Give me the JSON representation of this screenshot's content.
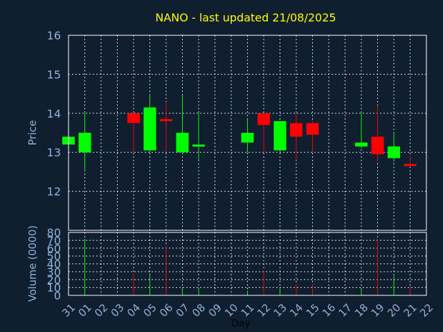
{
  "chart_data": {
    "type": "candlestick",
    "title": "NANO - last updated 21/08/2025",
    "xlabel": "Day",
    "price_panel": {
      "ylabel": "Price",
      "ylim": [
        11,
        16
      ],
      "yticks": [
        12,
        13,
        14,
        15,
        16
      ]
    },
    "volume_panel": {
      "ylabel": "Volume (0000)",
      "ylim": [
        0,
        80
      ],
      "yticks": [
        0,
        10,
        20,
        30,
        40,
        50,
        60,
        70,
        80
      ]
    },
    "x_tick_labels": [
      "31",
      "01",
      "02",
      "03",
      "04",
      "05",
      "06",
      "07",
      "08",
      "09",
      "10",
      "11",
      "12",
      "13",
      "14",
      "15",
      "16",
      "17",
      "18",
      "19",
      "20",
      "21",
      "22"
    ],
    "colors": {
      "up": "#00ff00",
      "down": "#ff0000",
      "background": "#0f1f30",
      "title": "#ffff00",
      "axis_text": "#8fb2d9"
    },
    "candles": [
      {
        "x": "31",
        "open": 13.2,
        "high": 13.4,
        "low": 13.2,
        "close": 13.4,
        "volume": 0
      },
      {
        "x": "01",
        "open": 13.0,
        "high": 14.0,
        "low": 12.5,
        "close": 13.5,
        "volume": 72
      },
      {
        "x": "04",
        "open": 14.0,
        "high": 14.0,
        "low": 13.0,
        "close": 13.75,
        "volume": 28
      },
      {
        "x": "05",
        "open": 13.05,
        "high": 14.5,
        "low": 13.0,
        "close": 14.15,
        "volume": 25
      },
      {
        "x": "06",
        "open": 13.85,
        "high": 14.3,
        "low": 13.0,
        "close": 13.8,
        "volume": 63
      },
      {
        "x": "07",
        "open": 13.0,
        "high": 14.45,
        "low": 13.0,
        "close": 13.5,
        "volume": 10
      },
      {
        "x": "08",
        "open": 13.2,
        "high": 14.0,
        "low": 12.8,
        "close": 13.2,
        "volume": 9
      },
      {
        "x": "11",
        "open": 13.25,
        "high": 13.85,
        "low": 13.0,
        "close": 13.5,
        "volume": 6
      },
      {
        "x": "12",
        "open": 14.0,
        "high": 14.0,
        "low": 13.0,
        "close": 13.7,
        "volume": 32
      },
      {
        "x": "13",
        "open": 13.05,
        "high": 13.8,
        "low": 13.0,
        "close": 13.8,
        "volume": 10
      },
      {
        "x": "14",
        "open": 13.75,
        "high": 14.0,
        "low": 12.8,
        "close": 13.4,
        "volume": 15
      },
      {
        "x": "15",
        "open": 13.75,
        "high": 13.8,
        "low": 13.0,
        "close": 13.45,
        "volume": 14
      },
      {
        "x": "18",
        "open": 13.15,
        "high": 14.0,
        "low": 13.1,
        "close": 13.25,
        "volume": 9
      },
      {
        "x": "19",
        "open": 13.4,
        "high": 14.2,
        "low": 12.75,
        "close": 12.95,
        "volume": 72
      },
      {
        "x": "20",
        "open": 12.85,
        "high": 13.5,
        "low": 12.75,
        "close": 13.15,
        "volume": 25
      },
      {
        "x": "21",
        "open": 12.7,
        "high": 12.9,
        "low": 12.65,
        "close": 12.65,
        "volume": 12
      }
    ]
  }
}
